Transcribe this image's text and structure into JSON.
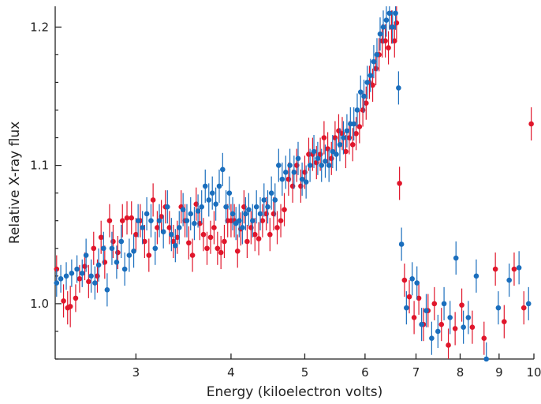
{
  "chart_data": {
    "type": "scatter",
    "xlabel": "Energy (kiloelectron volts)",
    "ylabel": "Relative X-ray flux",
    "x_scale": "log",
    "xlim": [
      2.35,
      10.0
    ],
    "ylim": [
      0.96,
      1.215
    ],
    "x_ticks": [
      3,
      4,
      5,
      6,
      7,
      8,
      9,
      10
    ],
    "x_tick_labels": [
      "3",
      "4",
      "5",
      "6",
      "7",
      "8",
      "9",
      "10"
    ],
    "y_ticks": [
      1.0,
      1.1,
      1.2
    ],
    "y_tick_labels": [
      "1.0",
      "1.1",
      "1.2"
    ],
    "grid": false,
    "error_bars": true,
    "series": [
      {
        "color": "#e0162b",
        "points": [
          [
            2.36,
            1.025,
            0.01
          ],
          [
            2.41,
            1.002,
            0.012
          ],
          [
            2.44,
            0.997,
            0.012
          ],
          [
            2.46,
            0.998,
            0.015
          ],
          [
            2.5,
            1.004,
            0.01
          ],
          [
            2.53,
            1.018,
            0.01
          ],
          [
            2.57,
            1.027,
            0.01
          ],
          [
            2.6,
            1.016,
            0.012
          ],
          [
            2.64,
            1.04,
            0.012
          ],
          [
            2.67,
            1.02,
            0.012
          ],
          [
            2.7,
            1.048,
            0.012
          ],
          [
            2.73,
            1.03,
            0.012
          ],
          [
            2.77,
            1.06,
            0.012
          ],
          [
            2.8,
            1.045,
            0.012
          ],
          [
            2.84,
            1.037,
            0.012
          ],
          [
            2.88,
            1.06,
            0.012
          ],
          [
            2.92,
            1.062,
            0.012
          ],
          [
            2.96,
            1.062,
            0.012
          ],
          [
            3.0,
            1.05,
            0.012
          ],
          [
            3.04,
            1.06,
            0.012
          ],
          [
            3.08,
            1.045,
            0.012
          ],
          [
            3.12,
            1.035,
            0.012
          ],
          [
            3.16,
            1.075,
            0.012
          ],
          [
            3.2,
            1.055,
            0.012
          ],
          [
            3.24,
            1.063,
            0.012
          ],
          [
            3.28,
            1.07,
            0.012
          ],
          [
            3.32,
            1.055,
            0.012
          ],
          [
            3.36,
            1.045,
            0.012
          ],
          [
            3.4,
            1.048,
            0.012
          ],
          [
            3.44,
            1.07,
            0.012
          ],
          [
            3.48,
            1.06,
            0.012
          ],
          [
            3.52,
            1.044,
            0.012
          ],
          [
            3.56,
            1.035,
            0.012
          ],
          [
            3.6,
            1.072,
            0.012
          ],
          [
            3.64,
            1.058,
            0.012
          ],
          [
            3.68,
            1.05,
            0.012
          ],
          [
            3.72,
            1.04,
            0.012
          ],
          [
            3.76,
            1.048,
            0.012
          ],
          [
            3.8,
            1.055,
            0.012
          ],
          [
            3.84,
            1.04,
            0.012
          ],
          [
            3.88,
            1.037,
            0.012
          ],
          [
            3.92,
            1.045,
            0.012
          ],
          [
            3.96,
            1.06,
            0.012
          ],
          [
            4.0,
            1.06,
            0.012
          ],
          [
            4.04,
            1.06,
            0.012
          ],
          [
            4.08,
            1.038,
            0.012
          ],
          [
            4.12,
            1.054,
            0.012
          ],
          [
            4.16,
            1.07,
            0.012
          ],
          [
            4.2,
            1.045,
            0.012
          ],
          [
            4.25,
            1.055,
            0.012
          ],
          [
            4.3,
            1.05,
            0.012
          ],
          [
            4.35,
            1.047,
            0.012
          ],
          [
            4.4,
            1.06,
            0.012
          ],
          [
            4.45,
            1.065,
            0.012
          ],
          [
            4.5,
            1.05,
            0.012
          ],
          [
            4.55,
            1.065,
            0.012
          ],
          [
            4.6,
            1.055,
            0.012
          ],
          [
            4.65,
            1.06,
            0.012
          ],
          [
            4.7,
            1.068,
            0.012
          ],
          [
            4.76,
            1.09,
            0.012
          ],
          [
            4.82,
            1.085,
            0.012
          ],
          [
            4.88,
            1.1,
            0.012
          ],
          [
            4.94,
            1.085,
            0.012
          ],
          [
            5.0,
            1.095,
            0.012
          ],
          [
            5.06,
            1.108,
            0.012
          ],
          [
            5.12,
            1.108,
            0.012
          ],
          [
            5.18,
            1.102,
            0.012
          ],
          [
            5.24,
            1.108,
            0.012
          ],
          [
            5.3,
            1.12,
            0.012
          ],
          [
            5.36,
            1.112,
            0.012
          ],
          [
            5.42,
            1.105,
            0.012
          ],
          [
            5.48,
            1.12,
            0.012
          ],
          [
            5.54,
            1.125,
            0.012
          ],
          [
            5.6,
            1.123,
            0.012
          ],
          [
            5.66,
            1.11,
            0.012
          ],
          [
            5.72,
            1.12,
            0.012
          ],
          [
            5.78,
            1.115,
            0.012
          ],
          [
            5.84,
            1.123,
            0.012
          ],
          [
            5.9,
            1.128,
            0.012
          ],
          [
            5.96,
            1.14,
            0.012
          ],
          [
            6.02,
            1.145,
            0.012
          ],
          [
            6.08,
            1.16,
            0.012
          ],
          [
            6.14,
            1.158,
            0.012
          ],
          [
            6.2,
            1.17,
            0.012
          ],
          [
            6.26,
            1.18,
            0.012
          ],
          [
            6.32,
            1.19,
            0.012
          ],
          [
            6.38,
            1.19,
            0.012
          ],
          [
            6.44,
            1.185,
            0.012
          ],
          [
            6.5,
            1.2,
            0.012
          ],
          [
            6.56,
            1.19,
            0.012
          ],
          [
            6.6,
            1.203,
            0.012
          ],
          [
            6.66,
            1.087,
            0.012
          ],
          [
            6.76,
            1.017,
            0.012
          ],
          [
            6.86,
            1.005,
            0.012
          ],
          [
            6.96,
            0.99,
            0.012
          ],
          [
            7.06,
            1.004,
            0.012
          ],
          [
            7.16,
            0.985,
            0.012
          ],
          [
            7.26,
            0.995,
            0.012
          ],
          [
            7.4,
            1.0,
            0.012
          ],
          [
            7.56,
            0.985,
            0.012
          ],
          [
            7.72,
            0.97,
            0.012
          ],
          [
            7.88,
            0.982,
            0.012
          ],
          [
            8.04,
            0.999,
            0.012
          ],
          [
            8.3,
            0.983,
            0.012
          ],
          [
            8.6,
            0.975,
            0.012
          ],
          [
            8.9,
            1.025,
            0.012
          ],
          [
            9.14,
            0.987,
            0.012
          ],
          [
            9.42,
            1.025,
            0.012
          ],
          [
            9.7,
            0.997,
            0.012
          ],
          [
            9.92,
            1.13,
            0.012
          ]
        ]
      },
      {
        "color": "#1a6ebd",
        "points": [
          [
            2.36,
            1.015,
            0.01
          ],
          [
            2.39,
            1.018,
            0.01
          ],
          [
            2.43,
            1.02,
            0.01
          ],
          [
            2.47,
            1.022,
            0.01
          ],
          [
            2.51,
            1.025,
            0.01
          ],
          [
            2.55,
            1.022,
            0.01
          ],
          [
            2.58,
            1.035,
            0.012
          ],
          [
            2.62,
            1.02,
            0.012
          ],
          [
            2.65,
            1.015,
            0.012
          ],
          [
            2.68,
            1.028,
            0.012
          ],
          [
            2.72,
            1.04,
            0.012
          ],
          [
            2.75,
            1.01,
            0.012
          ],
          [
            2.79,
            1.04,
            0.012
          ],
          [
            2.83,
            1.03,
            0.012
          ],
          [
            2.87,
            1.045,
            0.012
          ],
          [
            2.9,
            1.025,
            0.012
          ],
          [
            2.94,
            1.035,
            0.012
          ],
          [
            2.98,
            1.038,
            0.012
          ],
          [
            3.02,
            1.06,
            0.012
          ],
          [
            3.06,
            1.055,
            0.012
          ],
          [
            3.1,
            1.065,
            0.012
          ],
          [
            3.14,
            1.06,
            0.012
          ],
          [
            3.18,
            1.04,
            0.012
          ],
          [
            3.22,
            1.06,
            0.012
          ],
          [
            3.26,
            1.052,
            0.012
          ],
          [
            3.3,
            1.07,
            0.012
          ],
          [
            3.34,
            1.05,
            0.012
          ],
          [
            3.38,
            1.042,
            0.012
          ],
          [
            3.42,
            1.055,
            0.012
          ],
          [
            3.46,
            1.068,
            0.012
          ],
          [
            3.5,
            1.06,
            0.012
          ],
          [
            3.54,
            1.065,
            0.012
          ],
          [
            3.58,
            1.058,
            0.012
          ],
          [
            3.62,
            1.067,
            0.012
          ],
          [
            3.66,
            1.07,
            0.012
          ],
          [
            3.7,
            1.085,
            0.012
          ],
          [
            3.74,
            1.075,
            0.012
          ],
          [
            3.78,
            1.08,
            0.012
          ],
          [
            3.82,
            1.072,
            0.012
          ],
          [
            3.86,
            1.085,
            0.012
          ],
          [
            3.9,
            1.097,
            0.012
          ],
          [
            3.94,
            1.07,
            0.012
          ],
          [
            3.98,
            1.08,
            0.012
          ],
          [
            4.02,
            1.065,
            0.012
          ],
          [
            4.06,
            1.058,
            0.012
          ],
          [
            4.1,
            1.06,
            0.012
          ],
          [
            4.14,
            1.055,
            0.012
          ],
          [
            4.18,
            1.065,
            0.012
          ],
          [
            4.22,
            1.068,
            0.012
          ],
          [
            4.27,
            1.06,
            0.012
          ],
          [
            4.32,
            1.07,
            0.012
          ],
          [
            4.37,
            1.065,
            0.012
          ],
          [
            4.42,
            1.075,
            0.012
          ],
          [
            4.47,
            1.07,
            0.012
          ],
          [
            4.52,
            1.08,
            0.012
          ],
          [
            4.57,
            1.075,
            0.012
          ],
          [
            4.62,
            1.1,
            0.012
          ],
          [
            4.67,
            1.09,
            0.012
          ],
          [
            4.72,
            1.095,
            0.012
          ],
          [
            4.78,
            1.1,
            0.012
          ],
          [
            4.84,
            1.095,
            0.012
          ],
          [
            4.9,
            1.105,
            0.012
          ],
          [
            4.96,
            1.09,
            0.012
          ],
          [
            5.02,
            1.088,
            0.012
          ],
          [
            5.08,
            1.1,
            0.012
          ],
          [
            5.14,
            1.11,
            0.012
          ],
          [
            5.2,
            1.105,
            0.012
          ],
          [
            5.26,
            1.1,
            0.012
          ],
          [
            5.32,
            1.103,
            0.012
          ],
          [
            5.38,
            1.1,
            0.012
          ],
          [
            5.44,
            1.11,
            0.012
          ],
          [
            5.5,
            1.108,
            0.012
          ],
          [
            5.56,
            1.115,
            0.012
          ],
          [
            5.62,
            1.12,
            0.012
          ],
          [
            5.68,
            1.125,
            0.012
          ],
          [
            5.74,
            1.13,
            0.012
          ],
          [
            5.8,
            1.13,
            0.012
          ],
          [
            5.86,
            1.14,
            0.012
          ],
          [
            5.92,
            1.153,
            0.012
          ],
          [
            5.98,
            1.15,
            0.012
          ],
          [
            6.04,
            1.16,
            0.012
          ],
          [
            6.1,
            1.165,
            0.012
          ],
          [
            6.16,
            1.175,
            0.012
          ],
          [
            6.22,
            1.18,
            0.012
          ],
          [
            6.28,
            1.195,
            0.012
          ],
          [
            6.34,
            1.2,
            0.012
          ],
          [
            6.4,
            1.205,
            0.012
          ],
          [
            6.46,
            1.21,
            0.012
          ],
          [
            6.52,
            1.2,
            0.012
          ],
          [
            6.58,
            1.21,
            0.012
          ],
          [
            6.64,
            1.156,
            0.012
          ],
          [
            6.7,
            1.043,
            0.012
          ],
          [
            6.8,
            0.997,
            0.012
          ],
          [
            6.92,
            1.018,
            0.012
          ],
          [
            7.02,
            1.015,
            0.012
          ],
          [
            7.12,
            0.985,
            0.012
          ],
          [
            7.22,
            0.995,
            0.012
          ],
          [
            7.34,
            0.975,
            0.012
          ],
          [
            7.48,
            0.98,
            0.012
          ],
          [
            7.62,
            1.0,
            0.012
          ],
          [
            7.76,
            0.99,
            0.012
          ],
          [
            7.9,
            1.033,
            0.012
          ],
          [
            8.08,
            0.983,
            0.012
          ],
          [
            8.2,
            0.99,
            0.012
          ],
          [
            8.4,
            1.02,
            0.012
          ],
          [
            8.66,
            0.96,
            0.012
          ],
          [
            8.98,
            0.997,
            0.012
          ],
          [
            9.28,
            1.017,
            0.012
          ],
          [
            9.56,
            1.026,
            0.012
          ],
          [
            9.84,
            1.0,
            0.012
          ]
        ]
      }
    ]
  }
}
